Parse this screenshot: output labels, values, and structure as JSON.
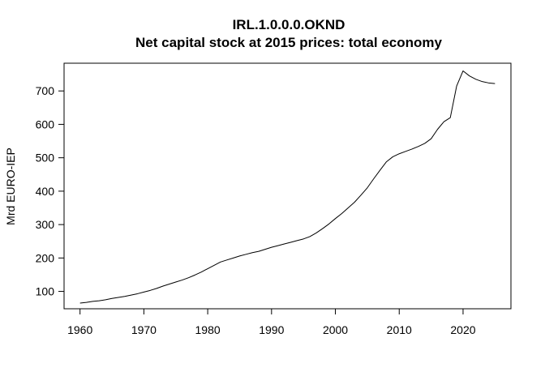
{
  "chart_data": {
    "type": "line",
    "title": "IRL.1.0.0.0.OKND",
    "subtitle": "Net capital stock at 2015 prices: total economy",
    "xlabel": "",
    "ylabel": "Mrd EURO-IEP",
    "xlim": [
      1957.5,
      2027.5
    ],
    "ylim": [
      48,
      783
    ],
    "x_ticks": [
      1960,
      1970,
      1980,
      1990,
      2000,
      2010,
      2020
    ],
    "y_ticks": [
      100,
      200,
      300,
      400,
      500,
      600,
      700
    ],
    "grid": false,
    "series": [
      {
        "name": "",
        "color": "#000000",
        "x": [
          1960,
          1961,
          1962,
          1963,
          1964,
          1965,
          1966,
          1967,
          1968,
          1969,
          1970,
          1971,
          1972,
          1973,
          1974,
          1975,
          1976,
          1977,
          1978,
          1979,
          1980,
          1981,
          1982,
          1983,
          1984,
          1985,
          1986,
          1987,
          1988,
          1989,
          1990,
          1991,
          1992,
          1993,
          1994,
          1995,
          1996,
          1997,
          1998,
          1999,
          2000,
          2001,
          2002,
          2003,
          2004,
          2005,
          2006,
          2007,
          2008,
          2009,
          2010,
          2011,
          2012,
          2013,
          2014,
          2015,
          2016,
          2017,
          2018,
          2019,
          2020,
          2021,
          2022,
          2023,
          2024,
          2025
        ],
        "values": [
          65,
          67,
          70,
          72,
          75,
          79,
          82,
          85,
          89,
          93,
          98,
          103,
          109,
          116,
          122,
          128,
          134,
          141,
          149,
          158,
          168,
          178,
          188,
          194,
          200,
          206,
          211,
          216,
          220,
          226,
          232,
          237,
          242,
          247,
          252,
          257,
          264,
          275,
          288,
          302,
          318,
          333,
          350,
          367,
          388,
          410,
          437,
          463,
          488,
          503,
          512,
          519,
          526,
          534,
          543,
          557,
          585,
          608,
          620,
          715,
          760,
          745,
          735,
          728,
          724,
          722
        ]
      }
    ]
  }
}
